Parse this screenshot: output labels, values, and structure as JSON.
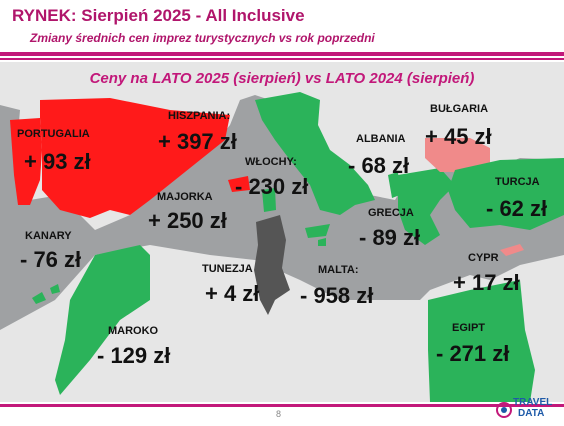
{
  "header": {
    "title": "RYNEK: Sierpień 2025 - All Inclusive",
    "subtitle": "Zmiany średnich cen imprez turystycznych vs rok poprzedni"
  },
  "headline": "Ceny na LATO 2025 (sierpień) vs  LATO 2024 (sierpień)",
  "colors": {
    "accent": "#c2187a",
    "increase_high": "#ff1a1a",
    "increase_low": "#f08a8a",
    "decrease": "#2bb35a",
    "neutral": "#555555",
    "land": "#e6e6e6",
    "sea": "#9fa1a3"
  },
  "countries": {
    "portugalia": {
      "label": "PORTUGALIA",
      "value": "+ 93 zł"
    },
    "hiszpania": {
      "label": "HISZPANIA:",
      "value": "+ 397 zł"
    },
    "majorka": {
      "label": "MAJORKA",
      "value": "+ 250 zł"
    },
    "kanary": {
      "label": "KANARY",
      "value": "- 76 zł"
    },
    "wlochy": {
      "label": "WŁOCHY:",
      "value": "- 230 zł"
    },
    "tunezja": {
      "label": "TUNEZJA",
      "value": "+ 4 zł"
    },
    "maroko": {
      "label": "MAROKO",
      "value": "- 129 zł"
    },
    "albania": {
      "label": "ALBANIA",
      "value": "- 68 zł"
    },
    "grecja": {
      "label": "GRECJA",
      "value": "- 89 zł"
    },
    "malta": {
      "label": "MALTA:",
      "value": "- 958 zł"
    },
    "bulgaria": {
      "label": "BUŁGARIA",
      "value": "+ 45 zł"
    },
    "turcja": {
      "label": "TURCJA",
      "value": "- 62 zł"
    },
    "cypr": {
      "label": "CYPR",
      "value": "+ 17 zł"
    },
    "egipt": {
      "label": "EGIPT",
      "value": "- 271 zł"
    }
  },
  "footer": {
    "page_number": "8",
    "logo_text_top": "TRAVEL",
    "logo_text_bottom": "DATA"
  }
}
